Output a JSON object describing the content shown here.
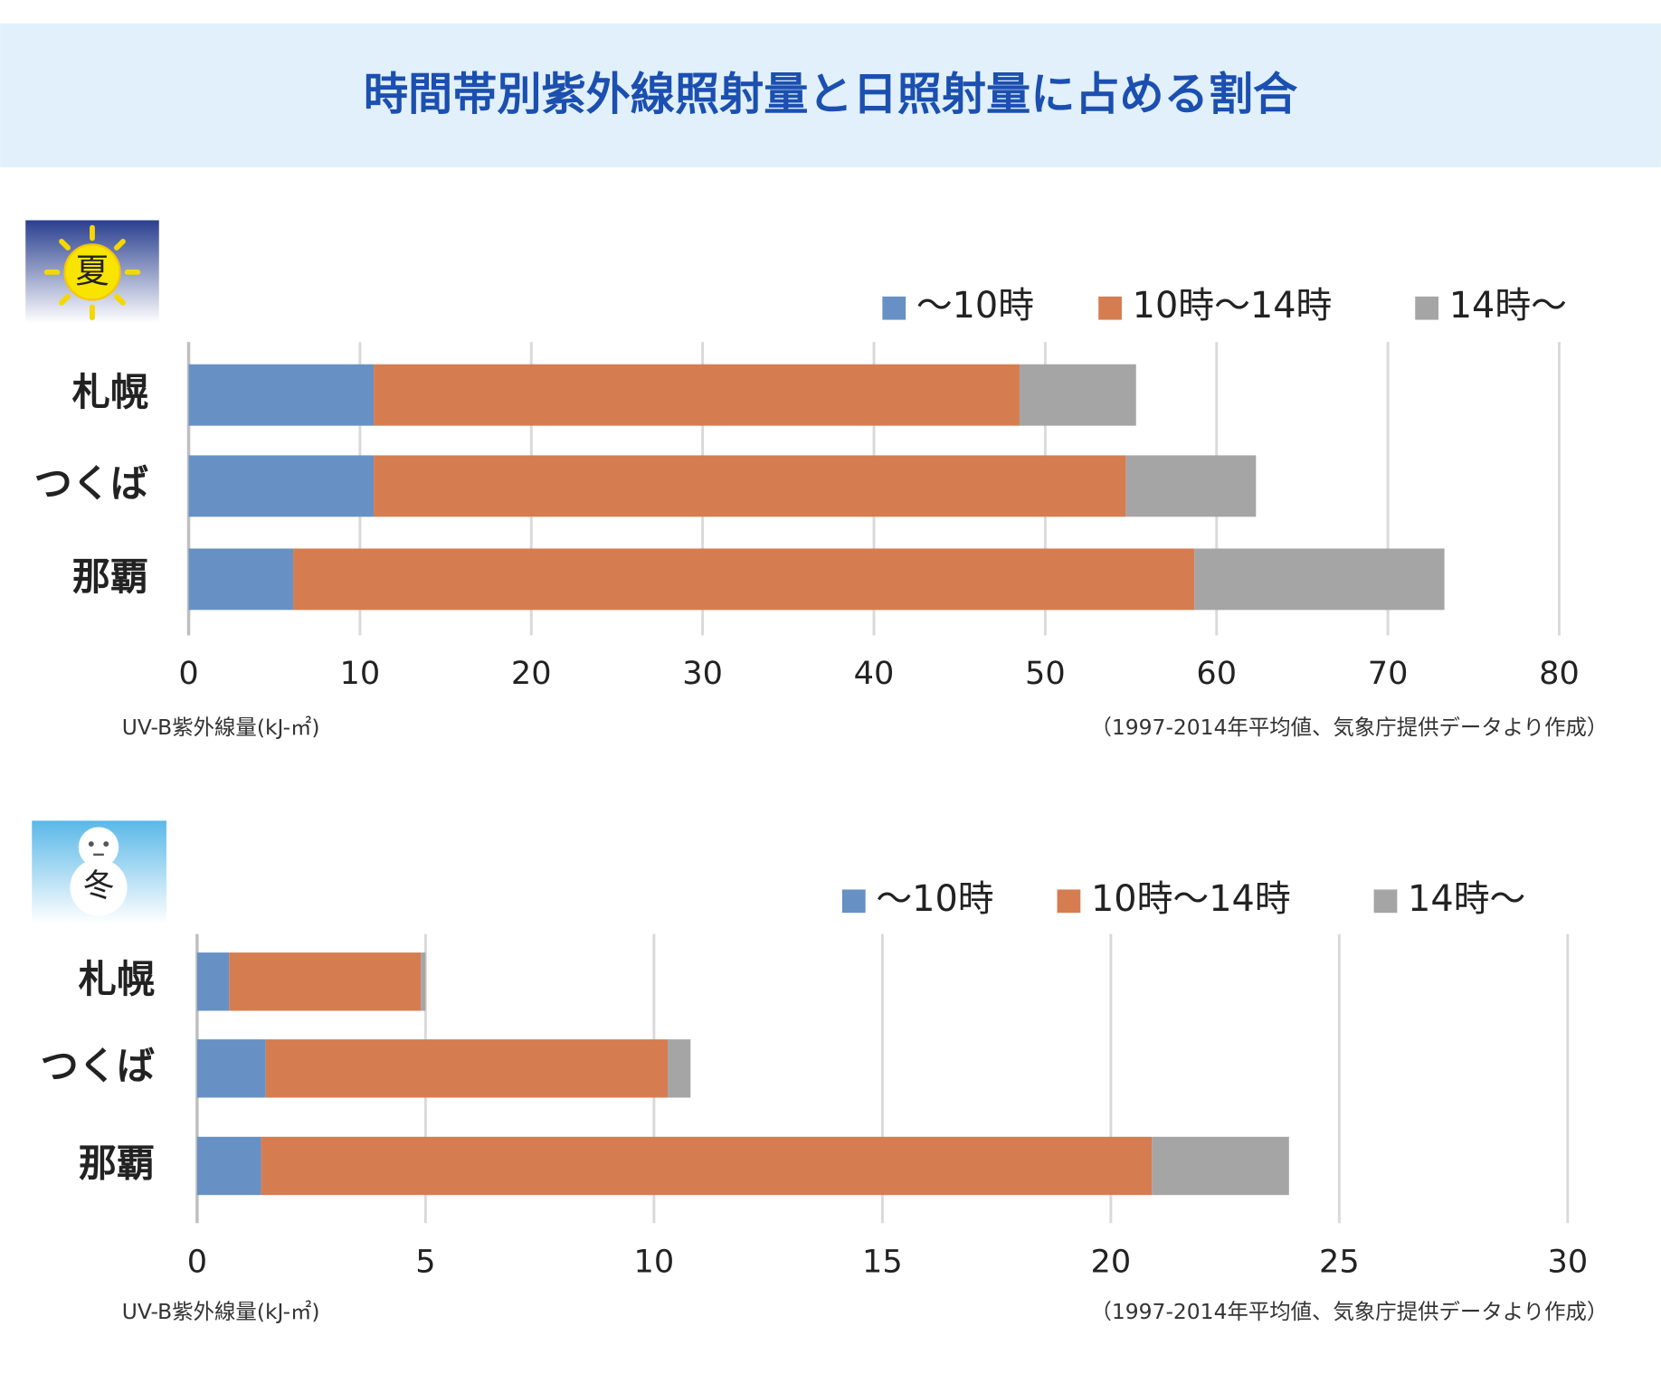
{
  "title": "時間帯別紫外線照射量と日照射量に占める割合",
  "chart_data": [
    {
      "type": "bar",
      "orientation": "horizontal",
      "stacked": true,
      "season": "夏",
      "categories": [
        "札幌",
        "つくば",
        "那覇"
      ],
      "series": [
        {
          "name": "～10時",
          "color": "#6791c4",
          "values": [
            10.8,
            10.8,
            6.1
          ]
        },
        {
          "name": "10時～14時",
          "color": "#d57d50",
          "values": [
            37.7,
            43.9,
            52.6
          ]
        },
        {
          "name": "14時～",
          "color": "#a5a5a6",
          "values": [
            6.8,
            7.6,
            14.6
          ]
        }
      ],
      "xlim": [
        0,
        80
      ],
      "xticks": [
        0,
        10,
        20,
        30,
        40,
        50,
        60,
        70,
        80
      ],
      "grid": true,
      "legend": "top-right",
      "x_label": "UV-B紫外線量(kJ-㎡)",
      "note": "（1997-2014年平均値、気象庁提供データより作成）"
    },
    {
      "type": "bar",
      "orientation": "horizontal",
      "stacked": true,
      "season": "冬",
      "categories": [
        "札幌",
        "つくば",
        "那覇"
      ],
      "series": [
        {
          "name": "～10時",
          "color": "#6791c4",
          "values": [
            0.7,
            1.5,
            1.4
          ]
        },
        {
          "name": "10時～14時",
          "color": "#d57d50",
          "values": [
            4.2,
            8.8,
            19.5
          ]
        },
        {
          "name": "14時～",
          "color": "#a5a5a6",
          "values": [
            0.1,
            0.5,
            3.0
          ]
        }
      ],
      "xlim": [
        0,
        30
      ],
      "xticks": [
        0,
        5,
        10,
        15,
        20,
        25,
        30
      ],
      "grid": true,
      "legend": "top-right",
      "x_label": "UV-B紫外線量(kJ-㎡)",
      "note": "（1997-2014年平均値、気象庁提供データより作成）"
    }
  ]
}
